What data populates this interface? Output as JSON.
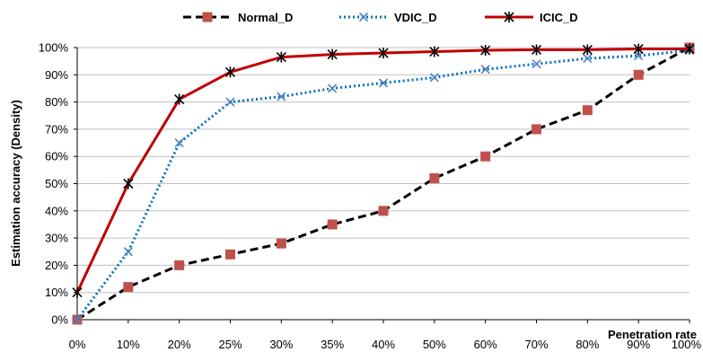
{
  "chart_data": {
    "type": "line",
    "xlabel": "Penetration rate",
    "ylabel": "Estimation accuracy (Density)",
    "categories": [
      "0%",
      "10%",
      "20%",
      "25%",
      "30%",
      "35%",
      "40%",
      "50%",
      "60%",
      "70%",
      "80%",
      "90%",
      "100%"
    ],
    "y_ticks": [
      "0%",
      "10%",
      "20%",
      "30%",
      "40%",
      "50%",
      "60%",
      "70%",
      "80%",
      "90%",
      "100%"
    ],
    "ylim": [
      0,
      100
    ],
    "grid": "horizontal",
    "legend_position": "top",
    "series": [
      {
        "name": "Normal_D",
        "color": "#000000",
        "line_style": "dashed",
        "marker": "square",
        "marker_color": "#c0504d",
        "values": [
          0,
          12,
          20,
          24,
          28,
          35,
          40,
          52,
          60,
          70,
          77,
          90,
          100
        ]
      },
      {
        "name": "VDIC_D",
        "color": "#0070c0",
        "line_style": "dotted",
        "marker": "x",
        "marker_color": "#4f81bd",
        "values": [
          0,
          25,
          65,
          80,
          82,
          85,
          87,
          89,
          92,
          94,
          96,
          97,
          99
        ]
      },
      {
        "name": "ICIC_D",
        "color": "#c00000",
        "line_style": "solid",
        "marker": "asterisk",
        "marker_color": "#000000",
        "values": [
          10,
          50,
          81,
          91,
          96.5,
          97.5,
          98,
          98.5,
          99,
          99.2,
          99.2,
          99.5,
          99.5
        ]
      }
    ]
  }
}
